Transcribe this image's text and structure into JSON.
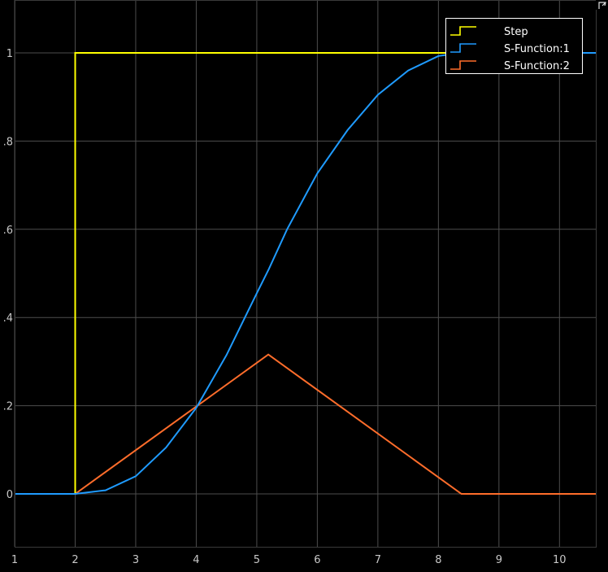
{
  "colors": {
    "background": "#000000",
    "frame": "#3a3a3a",
    "grid": "#4d4d4d",
    "tick_text": "#c8c8c8",
    "legend_bg": "#000000",
    "legend_border": "#ffffff",
    "corner_icon": "#e0e0e0"
  },
  "chart_data": {
    "type": "line",
    "title": "",
    "xlabel": "",
    "ylabel": "",
    "xlim": [
      1,
      10.6
    ],
    "ylim": [
      -0.12,
      1.12
    ],
    "grid": true,
    "legend_placement": "top-right",
    "xticks": [
      1,
      2,
      3,
      4,
      5,
      6,
      7,
      8,
      9,
      10
    ],
    "xtick_labels": [
      "1",
      "2",
      "3",
      "4",
      "5",
      "6",
      "7",
      "8",
      "9",
      "10"
    ],
    "yticks": [
      0,
      0.2,
      0.4,
      0.6,
      0.8,
      1
    ],
    "ytick_labels": [
      "0",
      ".2",
      ".4",
      ".6",
      ".8",
      "1"
    ],
    "series": [
      {
        "name": "Step",
        "color": "#ffff00",
        "x": [
          1,
          2,
          2,
          10.6
        ],
        "y": [
          0,
          0,
          1,
          1
        ]
      },
      {
        "name": "S-Function:1",
        "color": "#1f9bff",
        "x": [
          1,
          2,
          2.5,
          3,
          3.5,
          4,
          4.5,
          5,
          5.2,
          5.5,
          6,
          6.5,
          7,
          7.5,
          8,
          8.38,
          10.6
        ],
        "y": [
          0,
          0,
          0.008,
          0.04,
          0.105,
          0.195,
          0.315,
          0.455,
          0.51,
          0.6,
          0.727,
          0.825,
          0.905,
          0.96,
          0.993,
          1,
          1
        ]
      },
      {
        "name": "S-Function:2",
        "color": "#ff6d2b",
        "x": [
          1,
          2,
          5.19,
          8.38,
          10.6
        ],
        "y": [
          0,
          0,
          0.316,
          0,
          0
        ]
      }
    ]
  }
}
